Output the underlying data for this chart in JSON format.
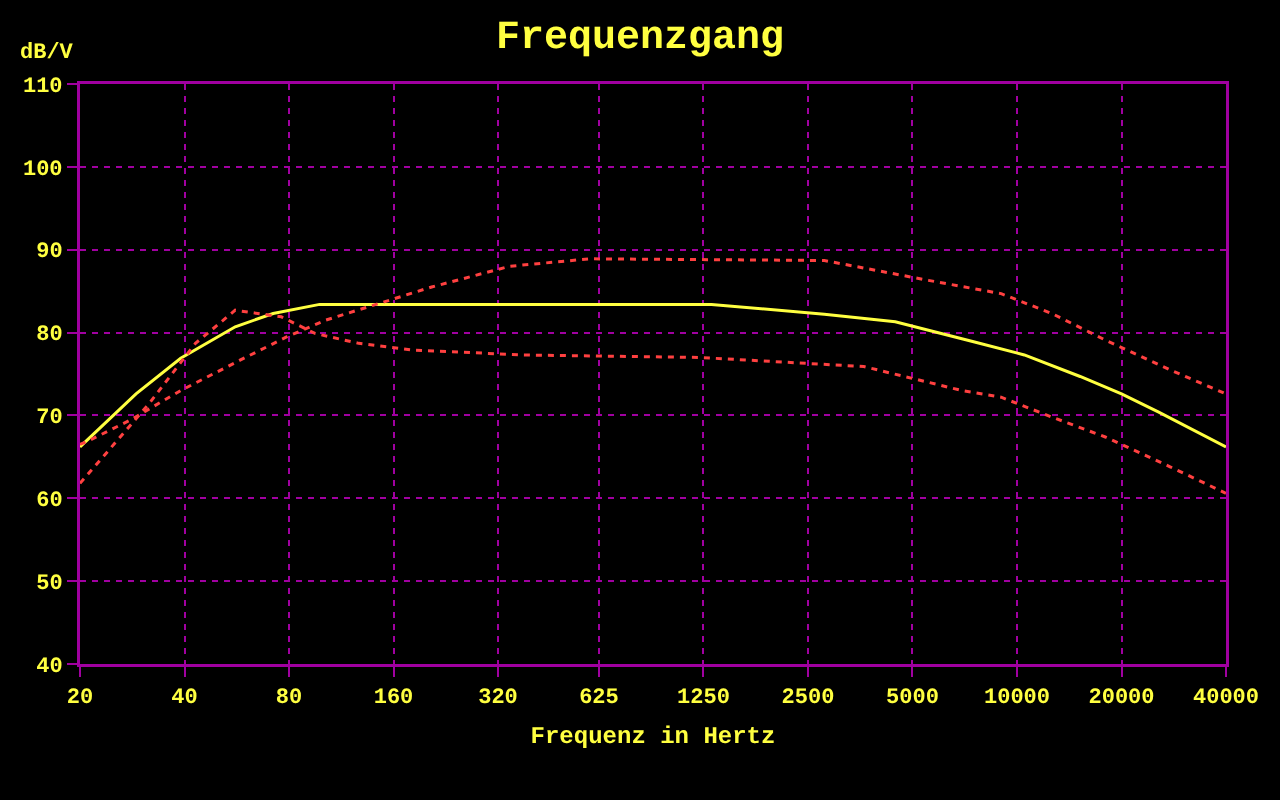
{
  "chart_data": {
    "type": "line",
    "title": "Frequenzgang",
    "xlabel": "Frequenz in Hertz",
    "ylabel": "dB/V",
    "log": "x",
    "xlim": [
      20,
      40000
    ],
    "xticks": [
      20,
      40,
      80,
      160,
      320,
      625,
      1250,
      2500,
      5000,
      10000,
      20000,
      40000
    ],
    "ylim": [
      40,
      110
    ],
    "yticks": [
      40,
      50,
      60,
      70,
      80,
      90,
      100,
      110
    ],
    "grid": true,
    "series": [
      {
        "color": "#ffff40",
        "line_style": "solid",
        "x": [
          20,
          29,
          39,
          56,
          72,
          98,
          1318,
          2786,
          4460,
          7500,
          10500,
          15200,
          20000,
          25600,
          40000
        ],
        "values": [
          66.2,
          72.6,
          76.9,
          80.7,
          82.3,
          83.4,
          83.4,
          82.2,
          81.3,
          78.9,
          77.3,
          74.7,
          72.6,
          70.4,
          66.2
        ]
      },
      {
        "color": "#ff4040",
        "line_style": "dotted",
        "x": [
          20,
          31.6,
          43,
          56,
          76,
          95,
          127,
          181,
          376,
          1210,
          3620,
          6950,
          9000,
          12600,
          17960,
          27600,
          40000
        ],
        "values": [
          61.8,
          71.4,
          78.7,
          82.7,
          81.9,
          79.9,
          78.7,
          77.9,
          77.3,
          77.0,
          75.9,
          73.0,
          72.2,
          69.8,
          67.4,
          63.8,
          60.6
        ]
      },
      {
        "color": "#ff4040",
        "line_style": "dotted",
        "x": [
          20,
          21.3,
          27.8,
          39,
          58,
          79,
          102,
          145,
          206,
          346,
          587,
          2786,
          5560,
          9000,
          12600,
          17960,
          27600,
          40000
        ],
        "values": [
          66.5,
          67.0,
          69.4,
          73.0,
          76.7,
          79.5,
          81.5,
          83.5,
          85.5,
          88.0,
          88.9,
          88.7,
          86.3,
          84.7,
          82.3,
          79.1,
          75.5,
          72.6
        ]
      }
    ]
  }
}
